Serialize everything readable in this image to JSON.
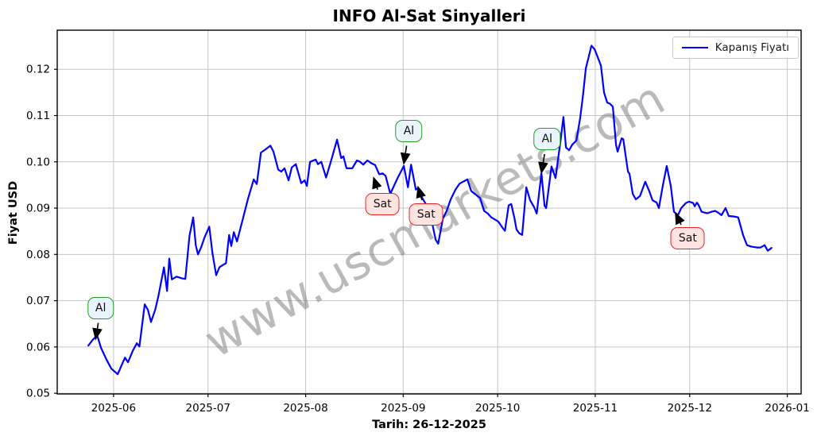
{
  "chart_data": {
    "type": "line",
    "title": "INFO Al-Sat Sinyalleri",
    "ylabel": "Fiyat USD",
    "caption": "Tarih: 26-12-2025",
    "watermark": "www.uscmarkets.com",
    "legend_position": "upper right",
    "grid": true,
    "x_unit": "days since 2025-05-24",
    "xlim": [
      -9.9,
      226.4
    ],
    "ylim": [
      0.04985,
      0.12845
    ],
    "y_ticks": [
      0.05,
      0.06,
      0.07,
      0.08,
      0.09,
      0.1,
      0.11,
      0.12
    ],
    "x_ticks": [
      {
        "t": 8,
        "label": "2025-06"
      },
      {
        "t": 38,
        "label": "2025-07"
      },
      {
        "t": 69,
        "label": "2025-08"
      },
      {
        "t": 100,
        "label": "2025-09"
      },
      {
        "t": 130,
        "label": "2025-10"
      },
      {
        "t": 161,
        "label": "2025-11"
      },
      {
        "t": 191,
        "label": "2025-12"
      },
      {
        "t": 222,
        "label": "2026-01"
      }
    ],
    "colors": {
      "line": "#0000ff",
      "grid": "#c4c4c4",
      "buy_border": "#23a123",
      "buy_fill": "#eaf4fc",
      "sell_border": "#ee2222",
      "sell_fill": "#fde4e1",
      "watermark": "rgba(130,130,130,0.55)"
    },
    "series": [
      {
        "name": "Kapanış Fiyatı",
        "color": "#0000ff",
        "points": [
          [
            0,
            0.0603
          ],
          [
            1.3,
            0.0615
          ],
          [
            2.8,
            0.0625
          ],
          [
            4,
            0.0598
          ],
          [
            5.8,
            0.0572
          ],
          [
            7.3,
            0.0553
          ],
          [
            9.3,
            0.0541
          ],
          [
            11.6,
            0.0577
          ],
          [
            12.6,
            0.0567
          ],
          [
            14.1,
            0.0592
          ],
          [
            15.4,
            0.0608
          ],
          [
            16.2,
            0.0601
          ],
          [
            17.9,
            0.0692
          ],
          [
            18.9,
            0.068
          ],
          [
            19.9,
            0.0654
          ],
          [
            21.2,
            0.068
          ],
          [
            22.2,
            0.0709
          ],
          [
            24,
            0.0772
          ],
          [
            25,
            0.0721
          ],
          [
            25.7,
            0.0791
          ],
          [
            26.5,
            0.0746
          ],
          [
            28,
            0.0752
          ],
          [
            29.8,
            0.0748
          ],
          [
            30.8,
            0.0747
          ],
          [
            32.1,
            0.084
          ],
          [
            33.3,
            0.088
          ],
          [
            34.1,
            0.082
          ],
          [
            34.8,
            0.08
          ],
          [
            35.8,
            0.0815
          ],
          [
            36.9,
            0.0837
          ],
          [
            38.4,
            0.086
          ],
          [
            39.4,
            0.0803
          ],
          [
            40.6,
            0.0755
          ],
          [
            41.6,
            0.0772
          ],
          [
            42.7,
            0.0777
          ],
          [
            43.7,
            0.0781
          ],
          [
            44.7,
            0.0842
          ],
          [
            45.4,
            0.0818
          ],
          [
            46.2,
            0.0848
          ],
          [
            47.2,
            0.0828
          ],
          [
            49,
            0.0875
          ],
          [
            50.7,
            0.092
          ],
          [
            52.5,
            0.0962
          ],
          [
            53.5,
            0.0952
          ],
          [
            54.8,
            0.102
          ],
          [
            56.3,
            0.1027
          ],
          [
            57.8,
            0.1035
          ],
          [
            58.8,
            0.1022
          ],
          [
            60.3,
            0.0983
          ],
          [
            61.3,
            0.0979
          ],
          [
            62.3,
            0.0986
          ],
          [
            63.6,
            0.096
          ],
          [
            64.6,
            0.0988
          ],
          [
            65.9,
            0.0995
          ],
          [
            67.6,
            0.0954
          ],
          [
            68.7,
            0.096
          ],
          [
            69.4,
            0.0948
          ],
          [
            70.4,
            0.1
          ],
          [
            72.2,
            0.1005
          ],
          [
            72.9,
            0.0995
          ],
          [
            74,
            0.1
          ],
          [
            75.5,
            0.0966
          ],
          [
            77.2,
            0.1005
          ],
          [
            79,
            0.1048
          ],
          [
            80.3,
            0.1008
          ],
          [
            81,
            0.1012
          ],
          [
            82,
            0.0986
          ],
          [
            83.8,
            0.0986
          ],
          [
            85.3,
            0.1003
          ],
          [
            86.3,
            0.1
          ],
          [
            87.3,
            0.0994
          ],
          [
            88.6,
            0.1003
          ],
          [
            89.9,
            0.0997
          ],
          [
            91.1,
            0.0993
          ],
          [
            92.4,
            0.0973
          ],
          [
            93.4,
            0.0975
          ],
          [
            94.4,
            0.097
          ],
          [
            95.9,
            0.0931
          ],
          [
            98.2,
            0.0965
          ],
          [
            100.2,
            0.0991
          ],
          [
            101.5,
            0.0945
          ],
          [
            102.5,
            0.0994
          ],
          [
            104,
            0.094
          ],
          [
            104.7,
            0.0943
          ],
          [
            105.8,
            0.0925
          ],
          [
            107,
            0.0911
          ],
          [
            108.3,
            0.0897
          ],
          [
            110.3,
            0.0832
          ],
          [
            111.1,
            0.0823
          ],
          [
            112.6,
            0.0877
          ],
          [
            113.8,
            0.0894
          ],
          [
            115.1,
            0.0919
          ],
          [
            116.6,
            0.094
          ],
          [
            117.9,
            0.0953
          ],
          [
            120.4,
            0.0962
          ],
          [
            121.6,
            0.0937
          ],
          [
            122.7,
            0.0931
          ],
          [
            124.4,
            0.0922
          ],
          [
            125.7,
            0.0894
          ],
          [
            126.9,
            0.0888
          ],
          [
            128,
            0.088
          ],
          [
            129.2,
            0.0875
          ],
          [
            130.2,
            0.0871
          ],
          [
            131.5,
            0.0858
          ],
          [
            132.3,
            0.0851
          ],
          [
            133.5,
            0.0906
          ],
          [
            134.3,
            0.0909
          ],
          [
            135.3,
            0.088
          ],
          [
            136,
            0.0854
          ],
          [
            136.8,
            0.0846
          ],
          [
            137.8,
            0.0842
          ],
          [
            139.1,
            0.0945
          ],
          [
            140.3,
            0.0917
          ],
          [
            141.6,
            0.0902
          ],
          [
            142.4,
            0.0888
          ],
          [
            143.9,
            0.0975
          ],
          [
            144.9,
            0.0905
          ],
          [
            145.4,
            0.09
          ],
          [
            147.1,
            0.099
          ],
          [
            148.4,
            0.0965
          ],
          [
            149.9,
            0.1042
          ],
          [
            150.9,
            0.1097
          ],
          [
            151.7,
            0.1031
          ],
          [
            152.7,
            0.1025
          ],
          [
            153.7,
            0.1037
          ],
          [
            155,
            0.1046
          ],
          [
            156.2,
            0.1094
          ],
          [
            157,
            0.1137
          ],
          [
            158,
            0.1202
          ],
          [
            159.8,
            0.1251
          ],
          [
            160.8,
            0.1243
          ],
          [
            161.8,
            0.1226
          ],
          [
            162.8,
            0.1208
          ],
          [
            163.8,
            0.115
          ],
          [
            164.8,
            0.1128
          ],
          [
            165.6,
            0.1126
          ],
          [
            166.6,
            0.1119
          ],
          [
            167.6,
            0.1037
          ],
          [
            168.1,
            0.1022
          ],
          [
            169.4,
            0.1051
          ],
          [
            169.9,
            0.1049
          ],
          [
            171.4,
            0.0979
          ],
          [
            171.9,
            0.0974
          ],
          [
            172.9,
            0.0931
          ],
          [
            173.9,
            0.0919
          ],
          [
            175.2,
            0.0926
          ],
          [
            176.9,
            0.0957
          ],
          [
            178.2,
            0.0936
          ],
          [
            179.2,
            0.0917
          ],
          [
            180.5,
            0.0912
          ],
          [
            181.2,
            0.09
          ],
          [
            182.5,
            0.095
          ],
          [
            183.7,
            0.0991
          ],
          [
            185,
            0.0948
          ],
          [
            186,
            0.0892
          ],
          [
            187.3,
            0.0885
          ],
          [
            188.3,
            0.09
          ],
          [
            189.8,
            0.0911
          ],
          [
            190.8,
            0.0914
          ],
          [
            192.1,
            0.0911
          ],
          [
            192.6,
            0.0904
          ],
          [
            193.3,
            0.0912
          ],
          [
            193.8,
            0.0907
          ],
          [
            194.8,
            0.0892
          ],
          [
            196.6,
            0.0889
          ],
          [
            197.9,
            0.0892
          ],
          [
            199.1,
            0.0894
          ],
          [
            200.1,
            0.089
          ],
          [
            201.1,
            0.0885
          ],
          [
            202.4,
            0.09
          ],
          [
            203.4,
            0.0883
          ],
          [
            204.9,
            0.0882
          ],
          [
            206.4,
            0.088
          ],
          [
            208,
            0.0841
          ],
          [
            209.2,
            0.082
          ],
          [
            210.5,
            0.0817
          ],
          [
            212.3,
            0.0815
          ],
          [
            213.5,
            0.0815
          ],
          [
            214.8,
            0.082
          ],
          [
            215.8,
            0.0808
          ],
          [
            217,
            0.0814
          ]
        ]
      }
    ],
    "signals": [
      {
        "label": "Al",
        "type": "buy",
        "t": 2.3,
        "price": 0.0617,
        "box_t": 3.9,
        "box_price": 0.0684
      },
      {
        "label": "Sat",
        "type": "sell",
        "t": 90.6,
        "price": 0.0966,
        "box_t": 93.4,
        "box_price": 0.0909
      },
      {
        "label": "Al",
        "type": "buy",
        "t": 100.2,
        "price": 0.0996,
        "box_t": 101.8,
        "box_price": 0.1067
      },
      {
        "label": "Sat",
        "type": "sell",
        "t": 104.7,
        "price": 0.0946,
        "box_t": 107.3,
        "box_price": 0.0886
      },
      {
        "label": "Al",
        "type": "buy",
        "t": 143.9,
        "price": 0.0976,
        "box_t": 145.7,
        "box_price": 0.1049
      },
      {
        "label": "Sat",
        "type": "sell",
        "t": 186.5,
        "price": 0.0889,
        "box_t": 190.4,
        "box_price": 0.0835
      }
    ]
  }
}
